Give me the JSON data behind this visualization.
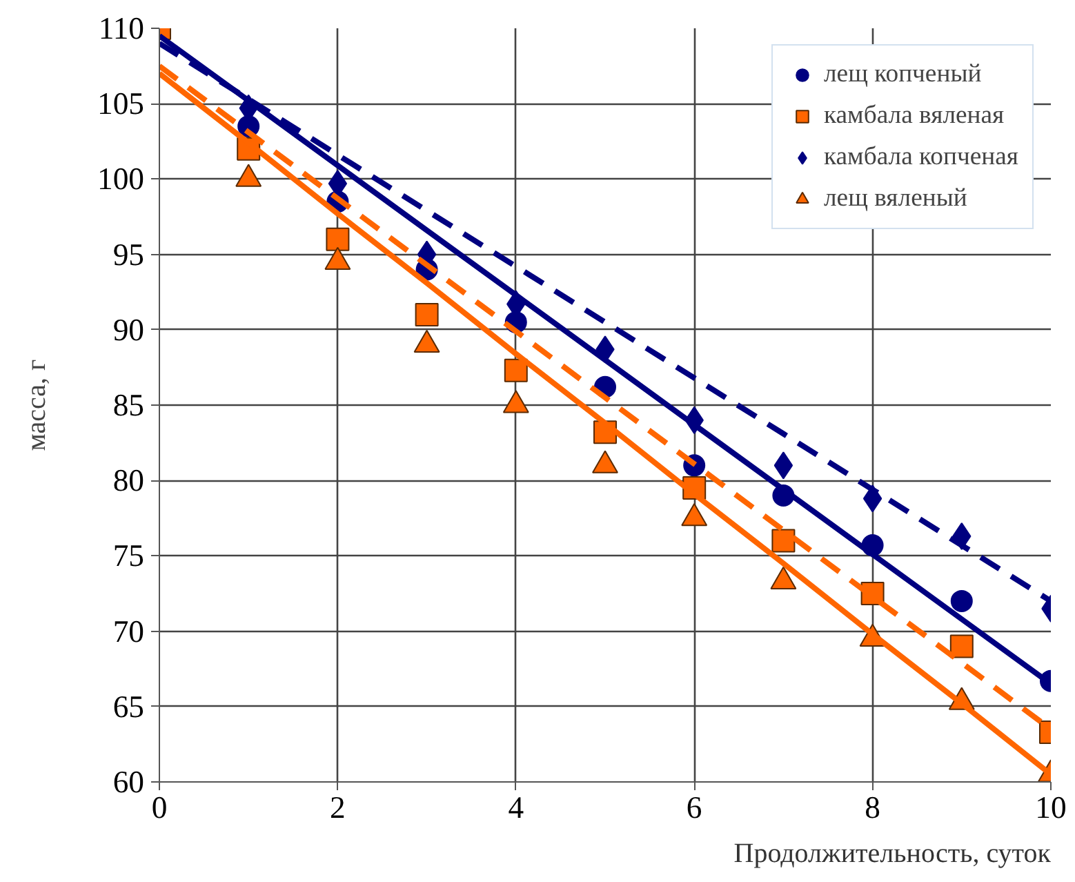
{
  "chart_data": {
    "type": "scatter",
    "xlabel": "Продолжительность, суток",
    "ylabel": "масса, г",
    "x": [
      0,
      1,
      2,
      3,
      4,
      5,
      6,
      7,
      8,
      9,
      10
    ],
    "series": [
      {
        "name": "лещ копченый",
        "marker": "circle",
        "color": "#000080",
        "values": [
          null,
          103.5,
          98.5,
          94,
          90.5,
          86.2,
          81,
          79,
          75.7,
          72,
          66.7
        ]
      },
      {
        "name": "камбала вяленая",
        "marker": "square",
        "color": "#ff6600",
        "values": [
          110,
          102,
          96,
          91,
          87.3,
          83.2,
          79.5,
          76,
          72.5,
          69,
          63.3
        ]
      },
      {
        "name": "камбала копченая",
        "marker": "diamond",
        "color": "#000080",
        "values": [
          null,
          104.7,
          99.7,
          95,
          91.7,
          88.7,
          84,
          81,
          78.8,
          76.3,
          71.5
        ]
      },
      {
        "name": "лещ вяленый",
        "marker": "triangle",
        "color": "#ff6600",
        "values": [
          null,
          100,
          94.5,
          89,
          85,
          81,
          77.5,
          73.3,
          69.5,
          65.3,
          60.5
        ]
      },
      {
        "type": "line",
        "line_style": "solid",
        "color": "#000080",
        "values": [
          109.5,
          105.2,
          100.9,
          96.6,
          92.3,
          88,
          83.7,
          79.4,
          75.1,
          70.8,
          66.5
        ]
      },
      {
        "type": "line",
        "line_style": "dashed",
        "color": "#000080",
        "values": [
          109,
          105.3,
          101.6,
          97.9,
          94.2,
          90.5,
          86.8,
          83.1,
          79.4,
          75.7,
          72
        ]
      },
      {
        "type": "line",
        "line_style": "dashed",
        "color": "#ff6600",
        "values": [
          107.5,
          103.1,
          98.7,
          94.3,
          89.9,
          85.5,
          81.1,
          76.7,
          72.3,
          67.9,
          63.5
        ]
      },
      {
        "type": "line",
        "line_style": "solid",
        "color": "#ff6600",
        "values": [
          107,
          102.4,
          97.7,
          93.1,
          88.4,
          83.8,
          79.1,
          74.5,
          69.8,
          65.2,
          60.5
        ]
      }
    ],
    "xlim": [
      0,
      10
    ],
    "ylim": [
      60,
      110
    ],
    "xticks": [
      0,
      2,
      4,
      6,
      8,
      10
    ],
    "yticks": [
      60,
      65,
      70,
      75,
      80,
      85,
      90,
      95,
      100,
      105,
      110
    ],
    "grid": true,
    "legend": "top right"
  }
}
